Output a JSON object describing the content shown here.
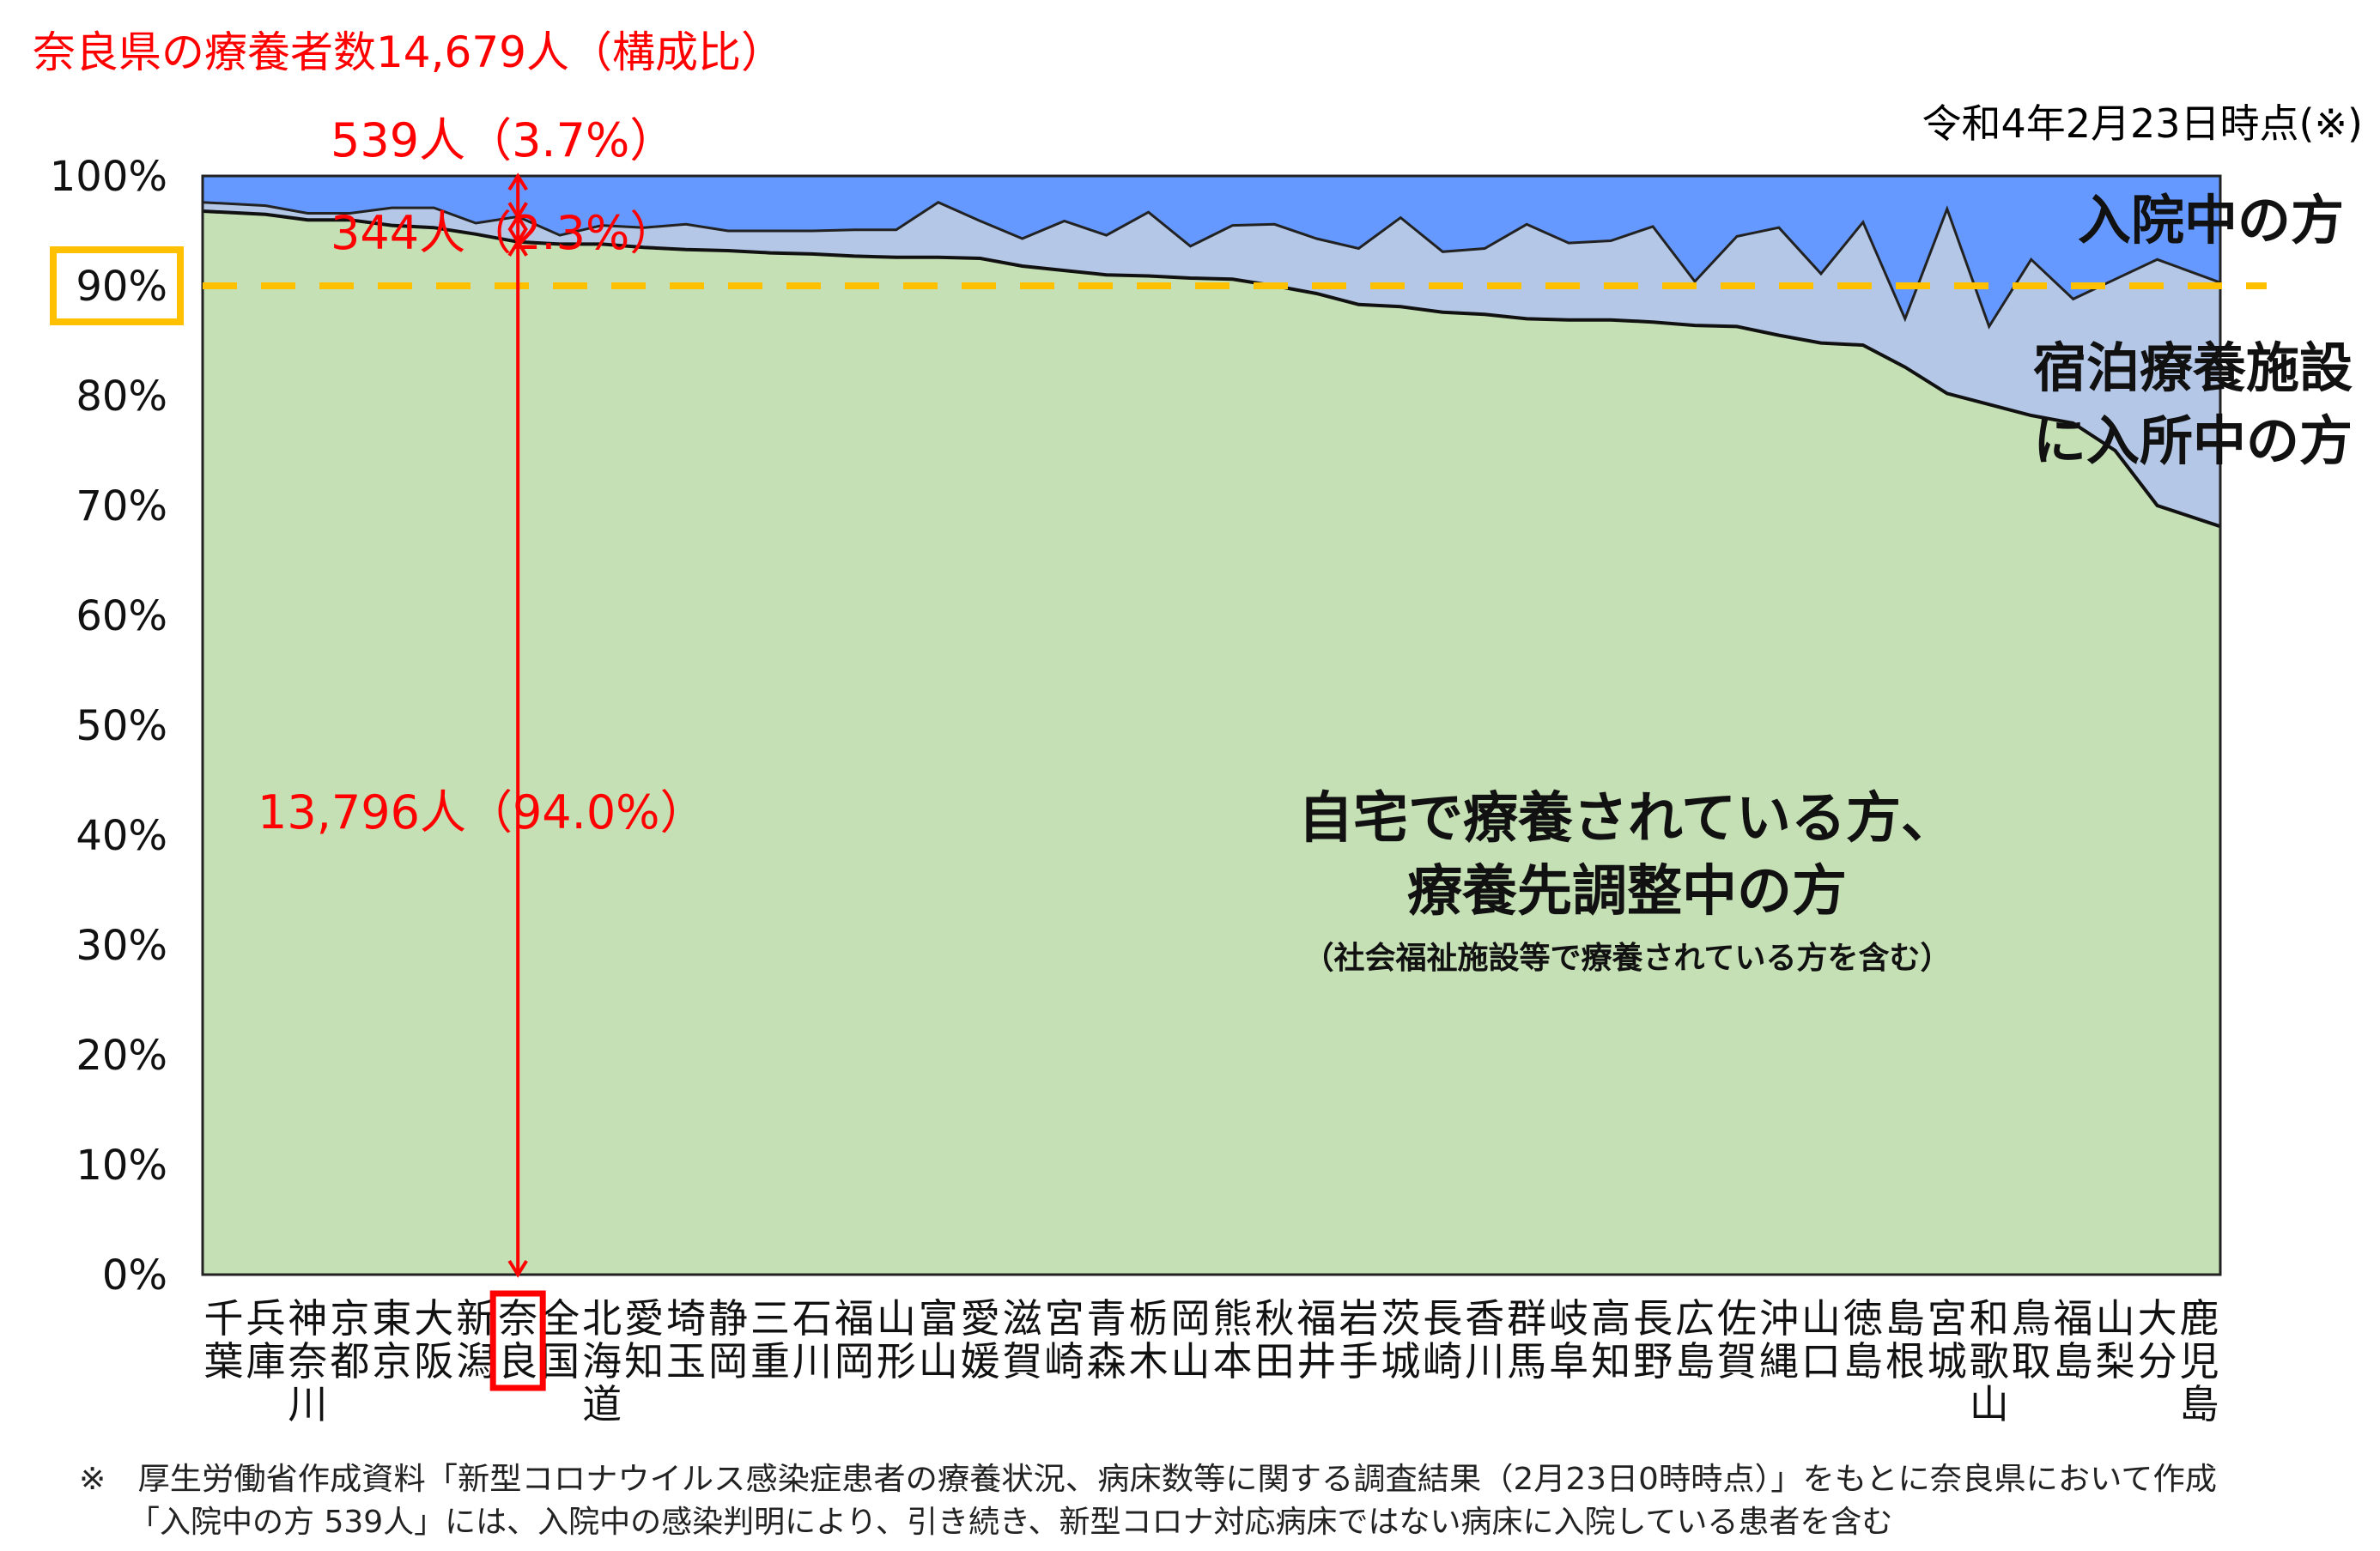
{
  "header": {
    "title": "奈良県の療養者数14,679人（構成比）",
    "date_note": "令和4年2月23日時点(※)"
  },
  "annotations": {
    "hospital": "539人（3.7%）",
    "facility": "344人（2.3%）",
    "home": "13,796人（94.0%）"
  },
  "legend_labels": {
    "hospital": "入院中の方",
    "facility_line1": "宿泊療養施設",
    "facility_line2": "に入所中の方",
    "home_line1": "自宅で療養されている方、",
    "home_line2": "療養先調整中の方",
    "home_note": "（社会福祉施設等で療養されている方を含む）"
  },
  "footnote": {
    "line1": "※　厚生労働省作成資料「新型コロナウイルス感染症患者の療養状況、病床数等に関する調査結果（2月23日0時時点）」をもとに奈良県において作成",
    "line2": "「入院中の方 539人」には、入院中の感染判明により、引き続き、新型コロナ対応病床ではない病床に入院している患者を含む"
  },
  "colors": {
    "hospital": "#6699ff",
    "facility": "#b4c7e7",
    "home": "#c5e0b4",
    "accent_red": "#ff0000",
    "reference_line": "#ffc000"
  },
  "chart_data": {
    "type": "area",
    "stacked": true,
    "highlight_category": "奈良",
    "reference_line": 90,
    "ylim": [
      0,
      100
    ],
    "yticks": [
      "0%",
      "10%",
      "20%",
      "30%",
      "40%",
      "50%",
      "60%",
      "70%",
      "80%",
      "90%",
      "100%"
    ],
    "categories": [
      "千葉",
      "兵庫",
      "神奈川",
      "京都",
      "東京",
      "大阪",
      "新潟",
      "奈良",
      "全国",
      "北海道",
      "愛知",
      "埼玉",
      "静岡",
      "三重",
      "石川",
      "福岡",
      "山形",
      "富山",
      "愛媛",
      "滋賀",
      "宮崎",
      "青森",
      "栃木",
      "岡山",
      "熊本",
      "秋田",
      "福井",
      "岩手",
      "茨城",
      "長崎",
      "香川",
      "群馬",
      "岐阜",
      "高知",
      "長野",
      "広島",
      "佐賀",
      "沖縄",
      "山口",
      "徳島",
      "島根",
      "宮城",
      "和歌山",
      "鳥取",
      "福島",
      "山梨",
      "大分",
      "鹿児島"
    ],
    "series": [
      {
        "name": "自宅で療養されている方、療養先調整中の方",
        "values": [
          96.8,
          96.5,
          96.0,
          96.0,
          95.5,
          95.3,
          94.7,
          94.0,
          93.8,
          93.8,
          93.5,
          93.3,
          93.2,
          93.0,
          92.9,
          92.7,
          92.6,
          92.6,
          92.5,
          91.8,
          91.4,
          91.0,
          90.9,
          90.7,
          90.6,
          90.0,
          89.3,
          88.3,
          88.1,
          87.6,
          87.4,
          87.0,
          86.9,
          86.9,
          86.7,
          86.4,
          86.3,
          85.5,
          84.8,
          84.6,
          82.6,
          80.2,
          79.2,
          78.2,
          77.5,
          75.0,
          70.0,
          68.1
        ]
      },
      {
        "name": "宿泊療養施設に入所中の方",
        "values": [
          0.8,
          0.8,
          0.6,
          0.6,
          1.6,
          1.8,
          1.0,
          2.3,
          0.8,
          1.7,
          1.8,
          2.3,
          1.8,
          2.0,
          2.1,
          2.4,
          2.5,
          5.0,
          3.4,
          2.5,
          4.5,
          3.6,
          5.8,
          2.9,
          4.9,
          5.6,
          5.0,
          5.1,
          8.1,
          5.5,
          6.0,
          8.6,
          7.0,
          7.2,
          8.7,
          4.0,
          8.2,
          9.8,
          6.3,
          11.2,
          4.4,
          16.8,
          7.1,
          14.2,
          11.3,
          15.6,
          22.4,
          22.2
        ]
      },
      {
        "name": "入院中の方",
        "values": [
          2.4,
          2.7,
          3.4,
          3.4,
          2.9,
          2.9,
          4.3,
          3.7,
          5.4,
          4.5,
          4.7,
          4.4,
          5.0,
          5.0,
          5.0,
          4.9,
          4.9,
          2.4,
          4.1,
          5.7,
          4.1,
          5.4,
          3.3,
          6.4,
          4.5,
          4.4,
          5.7,
          6.6,
          3.8,
          6.9,
          6.6,
          4.4,
          6.1,
          5.9,
          4.6,
          9.6,
          5.5,
          4.7,
          8.9,
          4.2,
          13.0,
          3.0,
          13.7,
          7.6,
          11.2,
          9.4,
          7.6,
          9.7
        ]
      }
    ]
  }
}
